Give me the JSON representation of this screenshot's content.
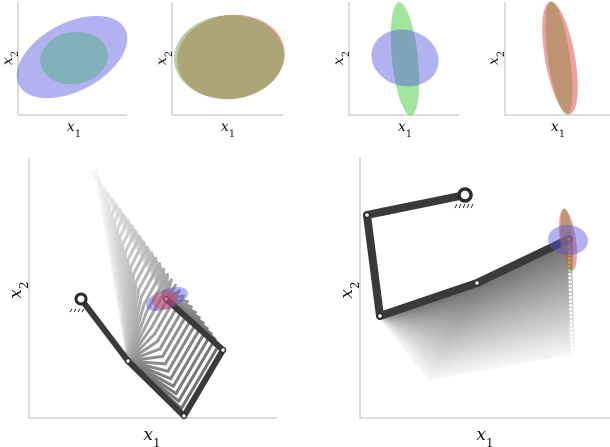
{
  "labels": {
    "x1": "x1",
    "x2": "x2"
  },
  "colors": {
    "blue": "#5555dd",
    "green": "#44cc44",
    "red": "#dd4444",
    "olive": "#8a7a2a",
    "teal": "#4a8a9a",
    "arm": "#3a3a3a"
  }
}
